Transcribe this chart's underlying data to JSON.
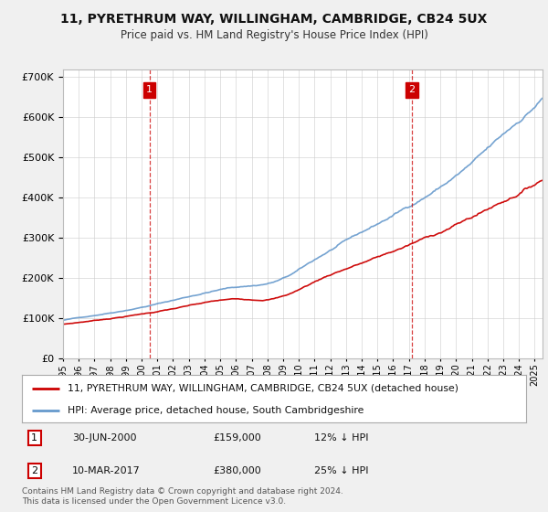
{
  "title": "11, PYRETHRUM WAY, WILLINGHAM, CAMBRIDGE, CB24 5UX",
  "subtitle": "Price paid vs. HM Land Registry's House Price Index (HPI)",
  "legend_house": "11, PYRETHRUM WAY, WILLINGHAM, CAMBRIDGE, CB24 5UX (detached house)",
  "legend_hpi": "HPI: Average price, detached house, South Cambridgeshire",
  "transaction1_date": "30-JUN-2000",
  "transaction1_price": "£159,000",
  "transaction1_hpi": "12% ↓ HPI",
  "transaction2_date": "10-MAR-2017",
  "transaction2_price": "£380,000",
  "transaction2_hpi": "25% ↓ HPI",
  "footer": "Contains HM Land Registry data © Crown copyright and database right 2024.\nThis data is licensed under the Open Government Licence v3.0.",
  "house_color": "#cc0000",
  "hpi_color": "#6699cc",
  "vline_color": "#cc0000",
  "marker_box_color": "#cc0000",
  "background_color": "#f0f0f0",
  "plot_bg_color": "#ffffff",
  "ylim": [
    0,
    720000
  ],
  "xlim_start": 1995.0,
  "xlim_end": 2025.5,
  "transaction1_x": 2000.5,
  "transaction2_x": 2017.2
}
